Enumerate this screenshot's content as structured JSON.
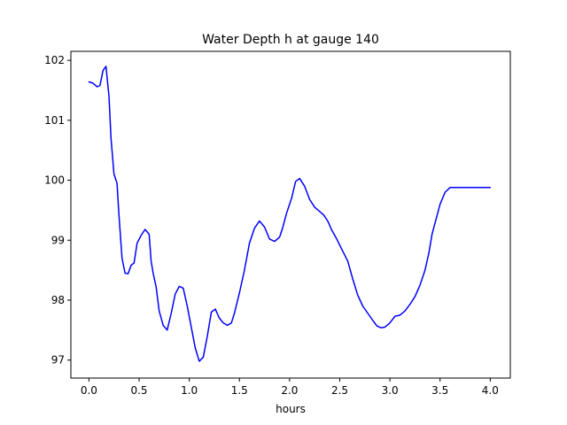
{
  "chart_data": {
    "type": "line",
    "title": "Water Depth h at gauge 140",
    "xlabel": "hours",
    "ylabel": "",
    "xlim": [
      -0.18,
      4.2
    ],
    "ylim": [
      96.7,
      102.15
    ],
    "xticks": [
      0.0,
      0.5,
      1.0,
      1.5,
      2.0,
      2.5,
      3.0,
      3.5,
      4.0
    ],
    "xtick_labels": [
      "0.0",
      "0.5",
      "1.0",
      "1.5",
      "2.0",
      "2.5",
      "3.0",
      "3.5",
      "4.0"
    ],
    "yticks": [
      97,
      98,
      99,
      100,
      101,
      102
    ],
    "ytick_labels": [
      "97",
      "98",
      "99",
      "100",
      "101",
      "102"
    ],
    "grid": false,
    "series": [
      {
        "color": "#0000ff",
        "x": [
          0.0,
          0.04,
          0.08,
          0.11,
          0.14,
          0.17,
          0.2,
          0.22,
          0.25,
          0.28,
          0.3,
          0.33,
          0.36,
          0.39,
          0.42,
          0.45,
          0.48,
          0.52,
          0.56,
          0.6,
          0.62,
          0.64,
          0.67,
          0.7,
          0.74,
          0.78,
          0.82,
          0.86,
          0.9,
          0.94,
          0.98,
          1.02,
          1.06,
          1.1,
          1.14,
          1.18,
          1.22,
          1.26,
          1.3,
          1.34,
          1.38,
          1.42,
          1.45,
          1.5,
          1.55,
          1.6,
          1.65,
          1.7,
          1.75,
          1.8,
          1.85,
          1.9,
          1.93,
          1.97,
          2.02,
          2.06,
          2.1,
          2.15,
          2.2,
          2.25,
          2.3,
          2.34,
          2.38,
          2.42,
          2.47,
          2.52,
          2.58,
          2.63,
          2.68,
          2.73,
          2.78,
          2.83,
          2.87,
          2.91,
          2.95,
          3.0,
          3.05,
          3.1,
          3.15,
          3.2,
          3.25,
          3.3,
          3.35,
          3.39,
          3.42,
          3.46,
          3.5,
          3.55,
          3.6,
          3.65,
          3.7,
          3.75,
          3.8,
          3.85,
          3.9,
          3.95,
          4.0
        ],
        "y": [
          101.64,
          101.62,
          101.56,
          101.58,
          101.83,
          101.9,
          101.4,
          100.7,
          100.1,
          99.95,
          99.4,
          98.7,
          98.45,
          98.44,
          98.58,
          98.62,
          98.95,
          99.08,
          99.18,
          99.1,
          98.65,
          98.45,
          98.22,
          97.82,
          97.58,
          97.5,
          97.78,
          98.1,
          98.23,
          98.2,
          97.9,
          97.55,
          97.2,
          96.98,
          97.05,
          97.4,
          97.8,
          97.85,
          97.7,
          97.62,
          97.58,
          97.62,
          97.78,
          98.12,
          98.5,
          98.95,
          99.2,
          99.32,
          99.22,
          99.02,
          98.98,
          99.05,
          99.2,
          99.45,
          99.7,
          99.98,
          100.03,
          99.9,
          99.68,
          99.55,
          99.48,
          99.42,
          99.32,
          99.17,
          99.02,
          98.85,
          98.65,
          98.35,
          98.08,
          97.9,
          97.78,
          97.66,
          97.57,
          97.54,
          97.55,
          97.62,
          97.73,
          97.75,
          97.82,
          97.93,
          98.06,
          98.25,
          98.5,
          98.8,
          99.1,
          99.35,
          99.6,
          99.8,
          99.88,
          99.88,
          99.88,
          99.88,
          99.88,
          99.88,
          99.88,
          99.88,
          99.88
        ]
      }
    ]
  }
}
